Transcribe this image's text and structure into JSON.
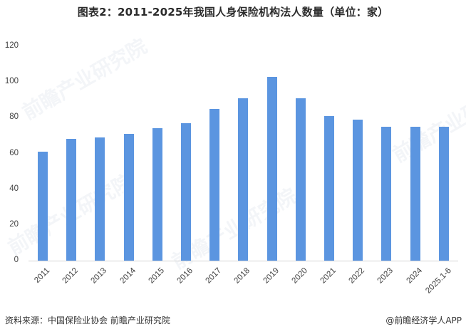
{
  "title": "图表2：2011-2025年我国人身保险机构法人数量（单位：家）",
  "watermarks": [
    "前瞻产业研究院",
    "前瞻产业研究院",
    "前瞻产业研究院",
    "前瞻产业研究院"
  ],
  "footer": {
    "source": "资料来源：中国保险业协会  前瞻产业研究院",
    "credit": "@前瞻经济学人APP"
  },
  "colors": {
    "bar": "#5b95e0",
    "axis": "#d4d4d4",
    "text": "#404040"
  },
  "chart_data": {
    "type": "bar",
    "title": "图表2：2011-2025年我国人身保险机构法人数量（单位：家）",
    "xlabel": "",
    "ylabel": "",
    "categories": [
      "2011",
      "2012",
      "2013",
      "2014",
      "2015",
      "2016",
      "2017",
      "2018",
      "2019",
      "2020",
      "2021",
      "2022",
      "2023",
      "2024",
      "2025.1-6"
    ],
    "values": [
      61,
      68,
      69,
      71,
      74,
      77,
      85,
      91,
      103,
      91,
      81,
      79,
      75,
      75,
      75
    ],
    "ylim": [
      0,
      120
    ],
    "yticks": [
      "0",
      "20",
      "40",
      "60",
      "80",
      "100",
      "120"
    ],
    "grid": false,
    "legend": null,
    "unit": "家"
  }
}
